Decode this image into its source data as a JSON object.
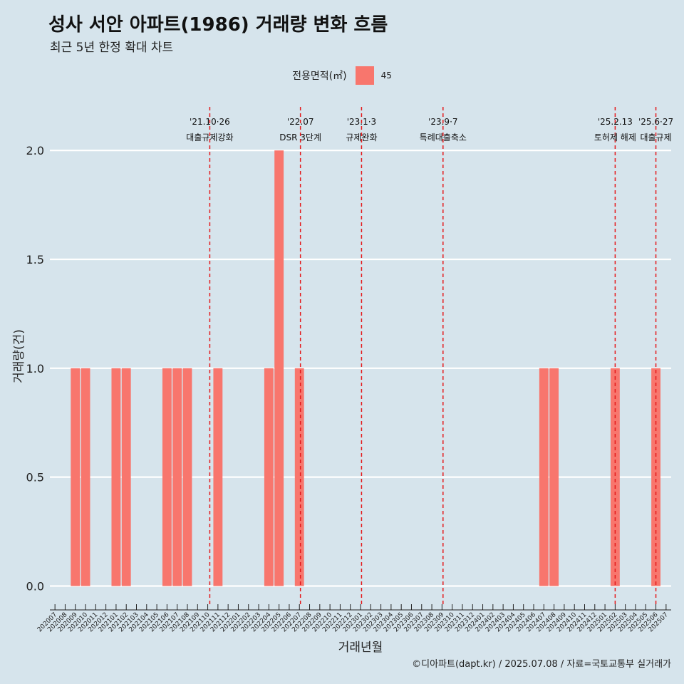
{
  "title": "성사 서안 아파트(1986) 거래량 변화 흐름",
  "subtitle": "최근 5년 한정 확대 차트",
  "caption": "©디아파트(dapt.kr) / 2025.07.08 / 자료=국토교통부 실거래가",
  "colors": {
    "background": "#d6e4ec",
    "bar": "#f8766d",
    "event_line": "#e41a1c",
    "grid": "#ffffff"
  },
  "chart_data": {
    "type": "bar",
    "xlabel": "거래년월",
    "ylabel": "거래량(건)",
    "ylim": [
      -0.09,
      2.2
    ],
    "yticks": [
      0,
      0.5,
      1,
      1.5,
      2
    ],
    "ytick_labels": [
      "0.0",
      "0.5",
      "1.0",
      "1.5",
      "2.0"
    ],
    "legend": {
      "title": "전용면적(㎡)",
      "position": "top",
      "entries": [
        {
          "label": "45",
          "color": "#f8766d"
        }
      ]
    },
    "grid": true,
    "categories": [
      "202007",
      "202008",
      "202009",
      "202010",
      "202011",
      "202012",
      "202101",
      "202102",
      "202103",
      "202104",
      "202105",
      "202106",
      "202107",
      "202108",
      "202109",
      "202110",
      "202111",
      "202112",
      "202201",
      "202202",
      "202203",
      "202204",
      "202205",
      "202206",
      "202207",
      "202208",
      "202209",
      "202210",
      "202211",
      "202212",
      "202301",
      "202302",
      "202303",
      "202304",
      "202305",
      "202306",
      "202307",
      "202308",
      "202309",
      "202310",
      "202311",
      "202312",
      "202401",
      "202402",
      "202403",
      "202404",
      "202405",
      "202406",
      "202407",
      "202408",
      "202409",
      "202410",
      "202411",
      "202412",
      "202501",
      "202502",
      "202503",
      "202504",
      "202505",
      "202506",
      "202507"
    ],
    "series": [
      {
        "name": "45",
        "values": [
          0,
          0,
          1,
          1,
          0,
          0,
          1,
          1,
          0,
          0,
          0,
          1,
          1,
          1,
          0,
          0,
          1,
          0,
          0,
          0,
          0,
          1,
          2,
          0,
          1,
          0,
          0,
          0,
          0,
          0,
          0,
          0,
          0,
          0,
          0,
          0,
          0,
          0,
          0,
          0,
          0,
          0,
          0,
          0,
          0,
          0,
          0,
          0,
          1,
          1,
          0,
          0,
          0,
          0,
          0,
          1,
          0,
          0,
          0,
          1,
          0
        ]
      }
    ],
    "events": [
      {
        "x": 15.2,
        "date": "'21.10·26",
        "label": "대출규제강화",
        "size": "normal"
      },
      {
        "x": 24.1,
        "date": "'22.07",
        "label": "DSR 3단계",
        "size": "normal"
      },
      {
        "x": 30.1,
        "date": "'23.1·3",
        "label": "규제완화",
        "size": "normal"
      },
      {
        "x": 38.1,
        "date": "'23.9·7",
        "label": "특례대출축소",
        "size": "normal"
      },
      {
        "x": 55.0,
        "date": "'25.2.13",
        "label": "토허제 해제",
        "size": "small"
      },
      {
        "x": 59.0,
        "date": "'25.6·27",
        "label": "대출규제",
        "size": "normal"
      }
    ]
  }
}
